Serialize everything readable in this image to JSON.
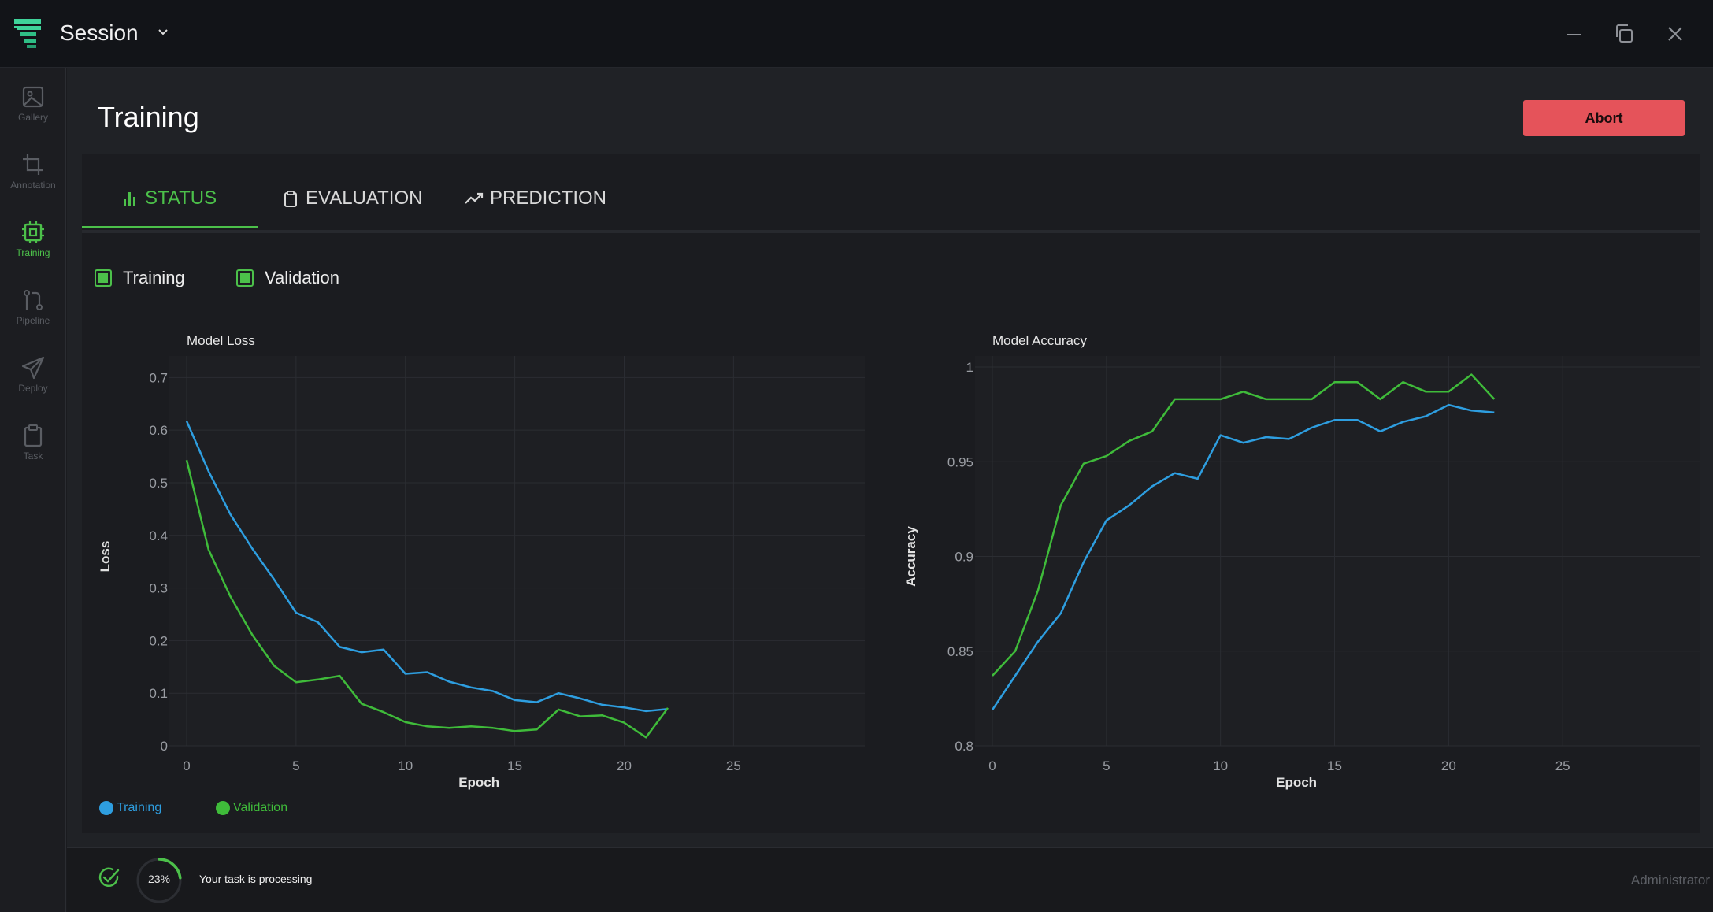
{
  "window": {
    "title": "Session",
    "controls": [
      "minimize-icon",
      "restore-icon",
      "close-icon"
    ]
  },
  "sidebar": {
    "items": [
      {
        "label": "Gallery",
        "icon": "image-icon",
        "active": false
      },
      {
        "label": "Annotation",
        "icon": "crop-icon",
        "active": false
      },
      {
        "label": "Training",
        "icon": "chip-icon",
        "active": true
      },
      {
        "label": "Pipeline",
        "icon": "git-pull-icon",
        "active": false
      },
      {
        "label": "Deploy",
        "icon": "send-icon",
        "active": false
      },
      {
        "label": "Task",
        "icon": "clipboard-icon",
        "active": false
      }
    ]
  },
  "page": {
    "title": "Training",
    "abort_label": "Abort"
  },
  "tabs": [
    {
      "label": "STATUS",
      "icon": "bar-chart-icon",
      "active": true
    },
    {
      "label": "EVALUATION",
      "icon": "clipboard-icon",
      "active": false
    },
    {
      "label": "PREDICTION",
      "icon": "trend-up-icon",
      "active": false
    }
  ],
  "filters": [
    {
      "label": "Training",
      "checked": true
    },
    {
      "label": "Validation",
      "checked": true
    }
  ],
  "colors": {
    "accent": "#4cc04a",
    "training": "#2e9ee0",
    "validation": "#3fbb3a",
    "danger": "#e5535a"
  },
  "chart_data": [
    {
      "type": "line",
      "title": "Model Loss",
      "xlabel": "Epoch",
      "ylabel": "Loss",
      "xlim": [
        0,
        31
      ],
      "ylim": [
        0,
        0.72
      ],
      "xticks": [
        0,
        5,
        10,
        15,
        20,
        25
      ],
      "yticks": [
        0,
        0.1,
        0.2,
        0.3,
        0.4,
        0.5,
        0.6,
        0.7
      ],
      "ytick_labels": [
        "0",
        "0.1",
        "0.2",
        "0.3",
        "0.4",
        "0.5",
        "0.6",
        "0.7"
      ],
      "grid": true,
      "x": [
        0,
        1,
        2,
        3,
        4,
        5,
        6,
        7,
        8,
        9,
        10,
        11,
        12,
        13,
        14,
        15,
        16,
        17,
        18,
        19,
        20,
        21,
        22
      ],
      "series": [
        {
          "name": "Training",
          "color": "#2e9ee0",
          "values": [
            0.617,
            0.522,
            0.44,
            0.375,
            0.316,
            0.253,
            0.235,
            0.188,
            0.178,
            0.183,
            0.137,
            0.14,
            0.122,
            0.111,
            0.104,
            0.087,
            0.083,
            0.1,
            0.09,
            0.078,
            0.073,
            0.066,
            0.07
          ]
        },
        {
          "name": "Validation",
          "color": "#3fbb3a",
          "values": [
            0.543,
            0.373,
            0.284,
            0.211,
            0.152,
            0.121,
            0.126,
            0.133,
            0.08,
            0.064,
            0.045,
            0.037,
            0.034,
            0.037,
            0.034,
            0.028,
            0.031,
            0.069,
            0.056,
            0.058,
            0.044,
            0.016,
            0.072
          ]
        }
      ]
    },
    {
      "type": "line",
      "title": "Model Accuracy",
      "xlabel": "Epoch",
      "ylabel": "Accuracy",
      "xlim": [
        0,
        31
      ],
      "ylim": [
        0.8,
        1.0
      ],
      "xticks": [
        0,
        5,
        10,
        15,
        20,
        25
      ],
      "yticks": [
        0.8,
        0.85,
        0.9,
        0.95,
        1.0
      ],
      "ytick_labels": [
        "0.8",
        "0.85",
        "0.9",
        "0.95",
        "1"
      ],
      "grid": true,
      "x": [
        0,
        1,
        2,
        3,
        4,
        5,
        6,
        7,
        8,
        9,
        10,
        11,
        12,
        13,
        14,
        15,
        16,
        17,
        18,
        19,
        20,
        21,
        22
      ],
      "series": [
        {
          "name": "Training",
          "color": "#2e9ee0",
          "values": [
            0.819,
            0.837,
            0.855,
            0.87,
            0.897,
            0.919,
            0.927,
            0.937,
            0.944,
            0.941,
            0.964,
            0.96,
            0.963,
            0.962,
            0.968,
            0.972,
            0.972,
            0.966,
            0.971,
            0.974,
            0.98,
            0.977,
            0.976
          ]
        },
        {
          "name": "Validation",
          "color": "#3fbb3a",
          "values": [
            0.837,
            0.85,
            0.882,
            0.927,
            0.949,
            0.953,
            0.961,
            0.966,
            0.983,
            0.983,
            0.983,
            0.987,
            0.983,
            0.983,
            0.983,
            0.992,
            0.992,
            0.983,
            0.992,
            0.987,
            0.987,
            0.996,
            0.983
          ]
        }
      ]
    }
  ],
  "legend": [
    {
      "label": "Training",
      "color": "#2e9ee0"
    },
    {
      "label": "Validation",
      "color": "#3fbb3a"
    }
  ],
  "status": {
    "progress_label": "23%",
    "progress_value": 0.23,
    "message": "Your task is processing",
    "user": "Administrator"
  }
}
